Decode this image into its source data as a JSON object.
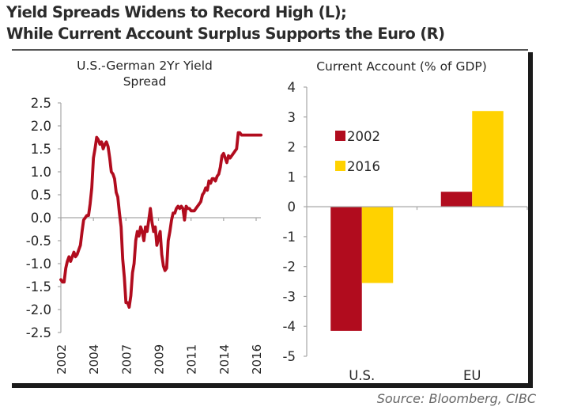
{
  "title_line1": "Yield Spreads Widens to Record High (L);",
  "title_line2": "While Current Account Surplus Supports the Euro (R)",
  "source": "Source: Bloomberg, CIBC",
  "colors": {
    "red": "#B10C1E",
    "yellow": "#FFD200",
    "axis": "#a6a6a6",
    "text": "#262626",
    "frame": "#1a1a1a"
  },
  "chart_data": [
    {
      "type": "line",
      "title": "U.S.-German 2Yr Yield Spread",
      "title_lines": [
        "U.S.-German 2Yr Yield",
        "Spread"
      ],
      "xlabel": "",
      "ylabel": "",
      "ylim": [
        -2.5,
        2.5
      ],
      "yticks": [
        2.5,
        2.0,
        1.5,
        1.0,
        0.5,
        0.0,
        -0.5,
        -1.0,
        -1.5,
        -2.0,
        -2.5
      ],
      "ytick_labels": [
        "2.5",
        "2.0",
        "1.5",
        "1.0",
        "0.5",
        "0.0",
        "-0.5",
        "-1.0",
        "-1.5",
        "-2.0",
        "-2.5"
      ],
      "xtick_labels": [
        "2002",
        "2004",
        "2007",
        "2009",
        "2011",
        "2014",
        "2016"
      ],
      "xlim_index": [
        0,
        6.17
      ],
      "grid": false,
      "series": [
        {
          "name": "U.S.-German 2Yr Yield Spread",
          "color": "#B10C1E",
          "x": [
            0,
            0.05,
            0.1,
            0.15,
            0.2,
            0.25,
            0.3,
            0.35,
            0.4,
            0.45,
            0.5,
            0.55,
            0.6,
            0.65,
            0.7,
            0.75,
            0.8,
            0.85,
            0.9,
            0.95,
            1.0,
            1.05,
            1.1,
            1.15,
            1.2,
            1.25,
            1.3,
            1.35,
            1.4,
            1.45,
            1.5,
            1.55,
            1.6,
            1.65,
            1.7,
            1.75,
            1.8,
            1.85,
            1.9,
            1.95,
            2.0,
            2.05,
            2.1,
            2.15,
            2.2,
            2.25,
            2.3,
            2.35,
            2.4,
            2.45,
            2.5,
            2.55,
            2.6,
            2.65,
            2.7,
            2.75,
            2.8,
            2.85,
            2.9,
            2.95,
            3.0,
            3.05,
            3.1,
            3.15,
            3.2,
            3.25,
            3.3,
            3.35,
            3.4,
            3.45,
            3.5,
            3.55,
            3.6,
            3.65,
            3.7,
            3.75,
            3.8,
            3.85,
            3.9,
            3.95,
            4.0,
            4.05,
            4.1,
            4.15,
            4.2,
            4.25,
            4.3,
            4.35,
            4.4,
            4.45,
            4.5,
            4.55,
            4.6,
            4.65,
            4.7,
            4.75,
            4.8,
            4.85,
            4.9,
            4.95,
            5.0,
            5.05,
            5.1,
            5.15,
            5.2,
            5.25,
            5.3,
            5.35,
            5.4,
            5.45,
            5.5,
            5.55,
            5.6,
            5.65,
            5.7,
            5.75,
            5.8,
            5.85,
            5.9,
            5.95,
            6.0,
            6.05,
            6.1,
            6.12,
            6.15
          ],
          "y": [
            -1.35,
            -1.4,
            -1.4,
            -1.1,
            -0.95,
            -0.85,
            -0.95,
            -0.85,
            -0.75,
            -0.85,
            -0.8,
            -0.7,
            -0.6,
            -0.3,
            -0.05,
            0.0,
            0.05,
            0.05,
            0.3,
            0.65,
            1.3,
            1.5,
            1.75,
            1.7,
            1.6,
            1.65,
            1.5,
            1.6,
            1.65,
            1.55,
            1.3,
            1.0,
            0.95,
            0.85,
            0.55,
            0.45,
            0.1,
            -0.2,
            -0.9,
            -1.3,
            -1.85,
            -1.85,
            -1.95,
            -1.7,
            -1.2,
            -1.0,
            -0.5,
            -0.3,
            -0.4,
            -0.2,
            -0.3,
            -0.5,
            -0.2,
            -0.3,
            -0.05,
            0.2,
            -0.1,
            -0.3,
            -0.2,
            -0.6,
            -0.45,
            -0.3,
            -0.8,
            -1.05,
            -1.15,
            -1.1,
            -0.5,
            -0.3,
            -0.05,
            0.1,
            0.1,
            0.2,
            0.25,
            0.2,
            0.25,
            0.2,
            -0.05,
            0.25,
            0.2,
            0.2,
            0.15,
            0.15,
            0.15,
            0.2,
            0.25,
            0.3,
            0.35,
            0.5,
            0.55,
            0.65,
            0.6,
            0.8,
            0.75,
            0.85,
            0.85,
            0.8,
            0.9,
            0.95,
            1.1,
            1.35,
            1.4,
            1.3,
            1.2,
            1.35,
            1.3,
            1.35,
            1.4,
            1.45,
            1.5,
            1.85,
            1.85,
            1.8,
            1.8,
            1.8,
            1.8,
            1.8,
            1.8,
            1.8,
            1.8,
            1.8,
            1.8,
            1.8,
            1.8,
            1.8,
            1.8
          ]
        }
      ]
    },
    {
      "type": "bar",
      "title": "Current Account (% of GDP)",
      "categories": [
        "U.S.",
        "EU"
      ],
      "ylim": [
        -5,
        4
      ],
      "yticks": [
        4,
        3,
        2,
        1,
        0,
        -1,
        -2,
        -3,
        -4,
        -5
      ],
      "ytick_labels": [
        "4",
        "3",
        "2",
        "1",
        "0",
        "-1",
        "-2",
        "-3",
        "-4",
        "-5"
      ],
      "legend_position": "upper-left",
      "grid": false,
      "series": [
        {
          "name": "2002",
          "color": "#B10C1E",
          "values": [
            -4.15,
            0.5
          ]
        },
        {
          "name": "2016",
          "color": "#FFD200",
          "values": [
            -2.55,
            3.2
          ]
        }
      ]
    }
  ]
}
